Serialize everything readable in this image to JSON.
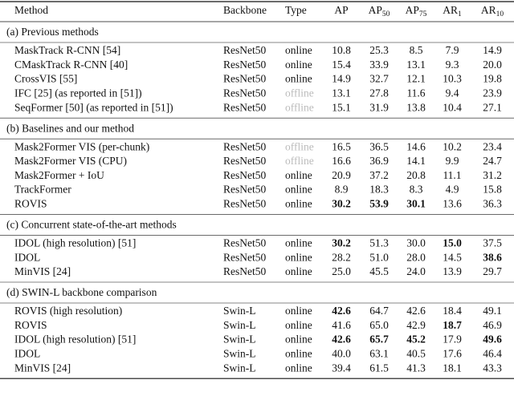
{
  "header": [
    {
      "text": "Method"
    },
    {
      "text": "Backbone"
    },
    {
      "text": "Type"
    },
    {
      "text": "AP"
    },
    {
      "text": "AP",
      "sub": "50"
    },
    {
      "text": "AP",
      "sub": "75"
    },
    {
      "text": "AR",
      "sub": "1"
    },
    {
      "text": "AR",
      "sub": "10"
    }
  ],
  "sections": [
    {
      "title": "(a) Previous methods",
      "rows": [
        {
          "cells": [
            "MaskTrack R-CNN [54]",
            "ResNet50",
            "online",
            "10.8",
            "25.3",
            "8.5",
            "7.9",
            "14.9"
          ],
          "bold": [],
          "muted": []
        },
        {
          "cells": [
            "CMaskTrack R-CNN [40]",
            "ResNet50",
            "online",
            "15.4",
            "33.9",
            "13.1",
            "9.3",
            "20.0"
          ],
          "bold": [],
          "muted": []
        },
        {
          "cells": [
            "CrossVIS [55]",
            "ResNet50",
            "online",
            "14.9",
            "32.7",
            "12.1",
            "10.3",
            "19.8"
          ],
          "bold": [],
          "muted": []
        },
        {
          "cells": [
            "IFC [25] (as reported in [51])",
            "ResNet50",
            "offline",
            "13.1",
            "27.8",
            "11.6",
            "9.4",
            "23.9"
          ],
          "bold": [],
          "muted": [
            2
          ]
        },
        {
          "cells": [
            "SeqFormer [50] (as reported in [51])",
            "ResNet50",
            "offline",
            "15.1",
            "31.9",
            "13.8",
            "10.4",
            "27.1"
          ],
          "bold": [],
          "muted": [
            2
          ]
        }
      ]
    },
    {
      "title": "(b) Baselines and our method",
      "rows": [
        {
          "cells": [
            "Mask2Former VIS (per-chunk)",
            "ResNet50",
            "offline",
            "16.5",
            "36.5",
            "14.6",
            "10.2",
            "23.4"
          ],
          "bold": [],
          "muted": [
            2
          ]
        },
        {
          "cells": [
            "Mask2Former VIS (CPU)",
            "ResNet50",
            "offline",
            "16.6",
            "36.9",
            "14.1",
            "9.9",
            "24.7"
          ],
          "bold": [],
          "muted": [
            2
          ]
        },
        {
          "cells": [
            "Mask2Former + IoU",
            "ResNet50",
            "online",
            "20.9",
            "37.2",
            "20.8",
            "11.1",
            "31.2"
          ],
          "bold": [],
          "muted": []
        },
        {
          "cells": [
            "TrackFormer",
            "ResNet50",
            "online",
            "8.9",
            "18.3",
            "8.3",
            "4.9",
            "15.8"
          ],
          "bold": [],
          "muted": []
        },
        {
          "cells": [
            "ROVIS",
            "ResNet50",
            "online",
            "30.2",
            "53.9",
            "30.1",
            "13.6",
            "36.3"
          ],
          "bold": [
            3,
            4,
            5
          ],
          "muted": []
        }
      ]
    },
    {
      "title": "(c) Concurrent state-of-the-art methods",
      "rows": [
        {
          "cells": [
            "IDOL (high resolution) [51]",
            "ResNet50",
            "online",
            "30.2",
            "51.3",
            "30.0",
            "15.0",
            "37.5"
          ],
          "bold": [
            3,
            6
          ],
          "muted": []
        },
        {
          "cells": [
            "IDOL",
            "ResNet50",
            "online",
            "28.2",
            "51.0",
            "28.0",
            "14.5",
            "38.6"
          ],
          "bold": [
            7
          ],
          "muted": []
        },
        {
          "cells": [
            "MinVIS [24]",
            "ResNet50",
            "online",
            "25.0",
            "45.5",
            "24.0",
            "13.9",
            "29.7"
          ],
          "bold": [],
          "muted": []
        }
      ]
    },
    {
      "title": "(d) SWIN-L backbone comparison",
      "rows": [
        {
          "cells": [
            "ROVIS (high resolution)",
            "Swin-L",
            "online",
            "42.6",
            "64.7",
            "42.6",
            "18.4",
            "49.1"
          ],
          "bold": [
            3
          ],
          "muted": []
        },
        {
          "cells": [
            "ROVIS",
            "Swin-L",
            "online",
            "41.6",
            "65.0",
            "42.9",
            "18.7",
            "46.9"
          ],
          "bold": [
            6
          ],
          "muted": []
        },
        {
          "cells": [
            "IDOL (high resolution) [51]",
            "Swin-L",
            "online",
            "42.6",
            "65.7",
            "45.2",
            "17.9",
            "49.6"
          ],
          "bold": [
            3,
            4,
            5,
            7
          ],
          "muted": []
        },
        {
          "cells": [
            "IDOL",
            "Swin-L",
            "online",
            "40.0",
            "63.1",
            "40.5",
            "17.6",
            "46.4"
          ],
          "bold": [],
          "muted": []
        },
        {
          "cells": [
            "MinVIS [24]",
            "Swin-L",
            "online",
            "39.4",
            "61.5",
            "41.3",
            "18.1",
            "43.3"
          ],
          "bold": [],
          "muted": []
        }
      ]
    }
  ]
}
